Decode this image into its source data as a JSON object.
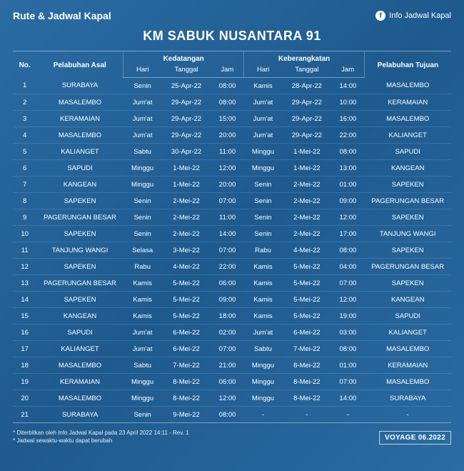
{
  "header": {
    "left_title": "Rute & Jadwal Kapal",
    "right_label": "Info Jadwal Kapal",
    "fb_glyph": "f"
  },
  "title": "KM SABUK NUSANTARA 91",
  "columns": {
    "no": "No.",
    "origin": "Pelabuhan Asal",
    "arrival": "Kedatangan",
    "departure": "Keberangkatan",
    "destination": "Pelabuhan Tujuan",
    "day": "Hari",
    "date": "Tanggal",
    "time": "Jam"
  },
  "rows": [
    {
      "no": "1",
      "origin": "SURABAYA",
      "arr_day": "Senin",
      "arr_date": "25-Apr-22",
      "arr_time": "08:00",
      "dep_day": "Kamis",
      "dep_date": "28-Apr-22",
      "dep_time": "14:00",
      "dest": "MASALEMBO"
    },
    {
      "no": "2",
      "origin": "MASALEMBO",
      "arr_day": "Jum'at",
      "arr_date": "29-Apr-22",
      "arr_time": "08:00",
      "dep_day": "Jum'at",
      "dep_date": "29-Apr-22",
      "dep_time": "10:00",
      "dest": "KERAMAIAN"
    },
    {
      "no": "3",
      "origin": "KERAMAIAN",
      "arr_day": "Jum'at",
      "arr_date": "29-Apr-22",
      "arr_time": "15:00",
      "dep_day": "Jum'at",
      "dep_date": "29-Apr-22",
      "dep_time": "16:00",
      "dest": "MASALEMBO"
    },
    {
      "no": "4",
      "origin": "MASALEMBO",
      "arr_day": "Jum'at",
      "arr_date": "29-Apr-22",
      "arr_time": "20:00",
      "dep_day": "Jum'at",
      "dep_date": "29-Apr-22",
      "dep_time": "22:00",
      "dest": "KALIANGET"
    },
    {
      "no": "5",
      "origin": "KALIANGET",
      "arr_day": "Sabtu",
      "arr_date": "30-Apr-22",
      "arr_time": "11:00",
      "dep_day": "Minggu",
      "dep_date": "1-Mei-22",
      "dep_time": "08:00",
      "dest": "SAPUDI"
    },
    {
      "no": "6",
      "origin": "SAPUDI",
      "arr_day": "Minggu",
      "arr_date": "1-Mei-22",
      "arr_time": "12:00",
      "dep_day": "Minggu",
      "dep_date": "1-Mei-22",
      "dep_time": "13:00",
      "dest": "KANGEAN"
    },
    {
      "no": "7",
      "origin": "KANGEAN",
      "arr_day": "Minggu",
      "arr_date": "1-Mei-22",
      "arr_time": "20:00",
      "dep_day": "Senin",
      "dep_date": "2-Mei-22",
      "dep_time": "01:00",
      "dest": "SAPEKEN"
    },
    {
      "no": "8",
      "origin": "SAPEKEN",
      "arr_day": "Senin",
      "arr_date": "2-Mei-22",
      "arr_time": "07:00",
      "dep_day": "Senin",
      "dep_date": "2-Mei-22",
      "dep_time": "09:00",
      "dest": "PAGERUNGAN BESAR"
    },
    {
      "no": "9",
      "origin": "PAGERUNGAN BESAR",
      "arr_day": "Senin",
      "arr_date": "2-Mei-22",
      "arr_time": "11:00",
      "dep_day": "Senin",
      "dep_date": "2-Mei-22",
      "dep_time": "12:00",
      "dest": "SAPEKEN"
    },
    {
      "no": "10",
      "origin": "SAPEKEN",
      "arr_day": "Senin",
      "arr_date": "2-Mei-22",
      "arr_time": "14:00",
      "dep_day": "Senin",
      "dep_date": "2-Mei-22",
      "dep_time": "17:00",
      "dest": "TANJUNG WANGI"
    },
    {
      "no": "11",
      "origin": "TANJUNG WANGI",
      "arr_day": "Selasa",
      "arr_date": "3-Mei-22",
      "arr_time": "07:00",
      "dep_day": "Rabu",
      "dep_date": "4-Mei-22",
      "dep_time": "08:00",
      "dest": "SAPEKEN"
    },
    {
      "no": "12",
      "origin": "SAPEKEN",
      "arr_day": "Rabu",
      "arr_date": "4-Mei-22",
      "arr_time": "22:00",
      "dep_day": "Kamis",
      "dep_date": "5-Mei-22",
      "dep_time": "04:00",
      "dest": "PAGERUNGAN BESAR"
    },
    {
      "no": "13",
      "origin": "PAGERUNGAN BESAR",
      "arr_day": "Kamis",
      "arr_date": "5-Mei-22",
      "arr_time": "06:00",
      "dep_day": "Kamis",
      "dep_date": "5-Mei-22",
      "dep_time": "07:00",
      "dest": "SAPEKEN"
    },
    {
      "no": "14",
      "origin": "SAPEKEN",
      "arr_day": "Kamis",
      "arr_date": "5-Mei-22",
      "arr_time": "09:00",
      "dep_day": "Kamis",
      "dep_date": "5-Mei-22",
      "dep_time": "12:00",
      "dest": "KANGEAN"
    },
    {
      "no": "15",
      "origin": "KANGEAN",
      "arr_day": "Kamis",
      "arr_date": "5-Mei-22",
      "arr_time": "18:00",
      "dep_day": "Kamis",
      "dep_date": "5-Mei-22",
      "dep_time": "19:00",
      "dest": "SAPUDI"
    },
    {
      "no": "16",
      "origin": "SAPUDI",
      "arr_day": "Jum'at",
      "arr_date": "6-Mei-22",
      "arr_time": "02:00",
      "dep_day": "Jum'at",
      "dep_date": "6-Mei-22",
      "dep_time": "03:00",
      "dest": "KALIANGET"
    },
    {
      "no": "17",
      "origin": "KALIANGET",
      "arr_day": "Jum'at",
      "arr_date": "6-Mei-22",
      "arr_time": "07:00",
      "dep_day": "Sabtu",
      "dep_date": "7-Mei-22",
      "dep_time": "08:00",
      "dest": "MASALEMBO"
    },
    {
      "no": "18",
      "origin": "MASALEMBO",
      "arr_day": "Sabtu",
      "arr_date": "7-Mei-22",
      "arr_time": "21:00",
      "dep_day": "Minggu",
      "dep_date": "8-Mei-22",
      "dep_time": "01:00",
      "dest": "KERAMAIAN"
    },
    {
      "no": "19",
      "origin": "KERAMAIAN",
      "arr_day": "Minggu",
      "arr_date": "8-Mei-22",
      "arr_time": "06:00",
      "dep_day": "Minggu",
      "dep_date": "8-Mei-22",
      "dep_time": "07:00",
      "dest": "MASALEMBO"
    },
    {
      "no": "20",
      "origin": "MASALEMBO",
      "arr_day": "Minggu",
      "arr_date": "8-Mei-22",
      "arr_time": "12:00",
      "dep_day": "Minggu",
      "dep_date": "8-Mei-22",
      "dep_time": "14:00",
      "dest": "SURABAYA"
    },
    {
      "no": "21",
      "origin": "SURABAYA",
      "arr_day": "Senin",
      "arr_date": "9-Mei-22",
      "arr_time": "08:00",
      "dep_day": "-",
      "dep_date": "-",
      "dep_time": "-",
      "dest": "-"
    }
  ],
  "footnotes": {
    "line1": "* Diterbitkan oleh Info Jadwal Kapal pada 23 April 2022 14:11 - Rev. 1",
    "line2": "* Jadwal sewaktu-waktu dapat berubah"
  },
  "voyage": "VOYAGE 06.2022"
}
